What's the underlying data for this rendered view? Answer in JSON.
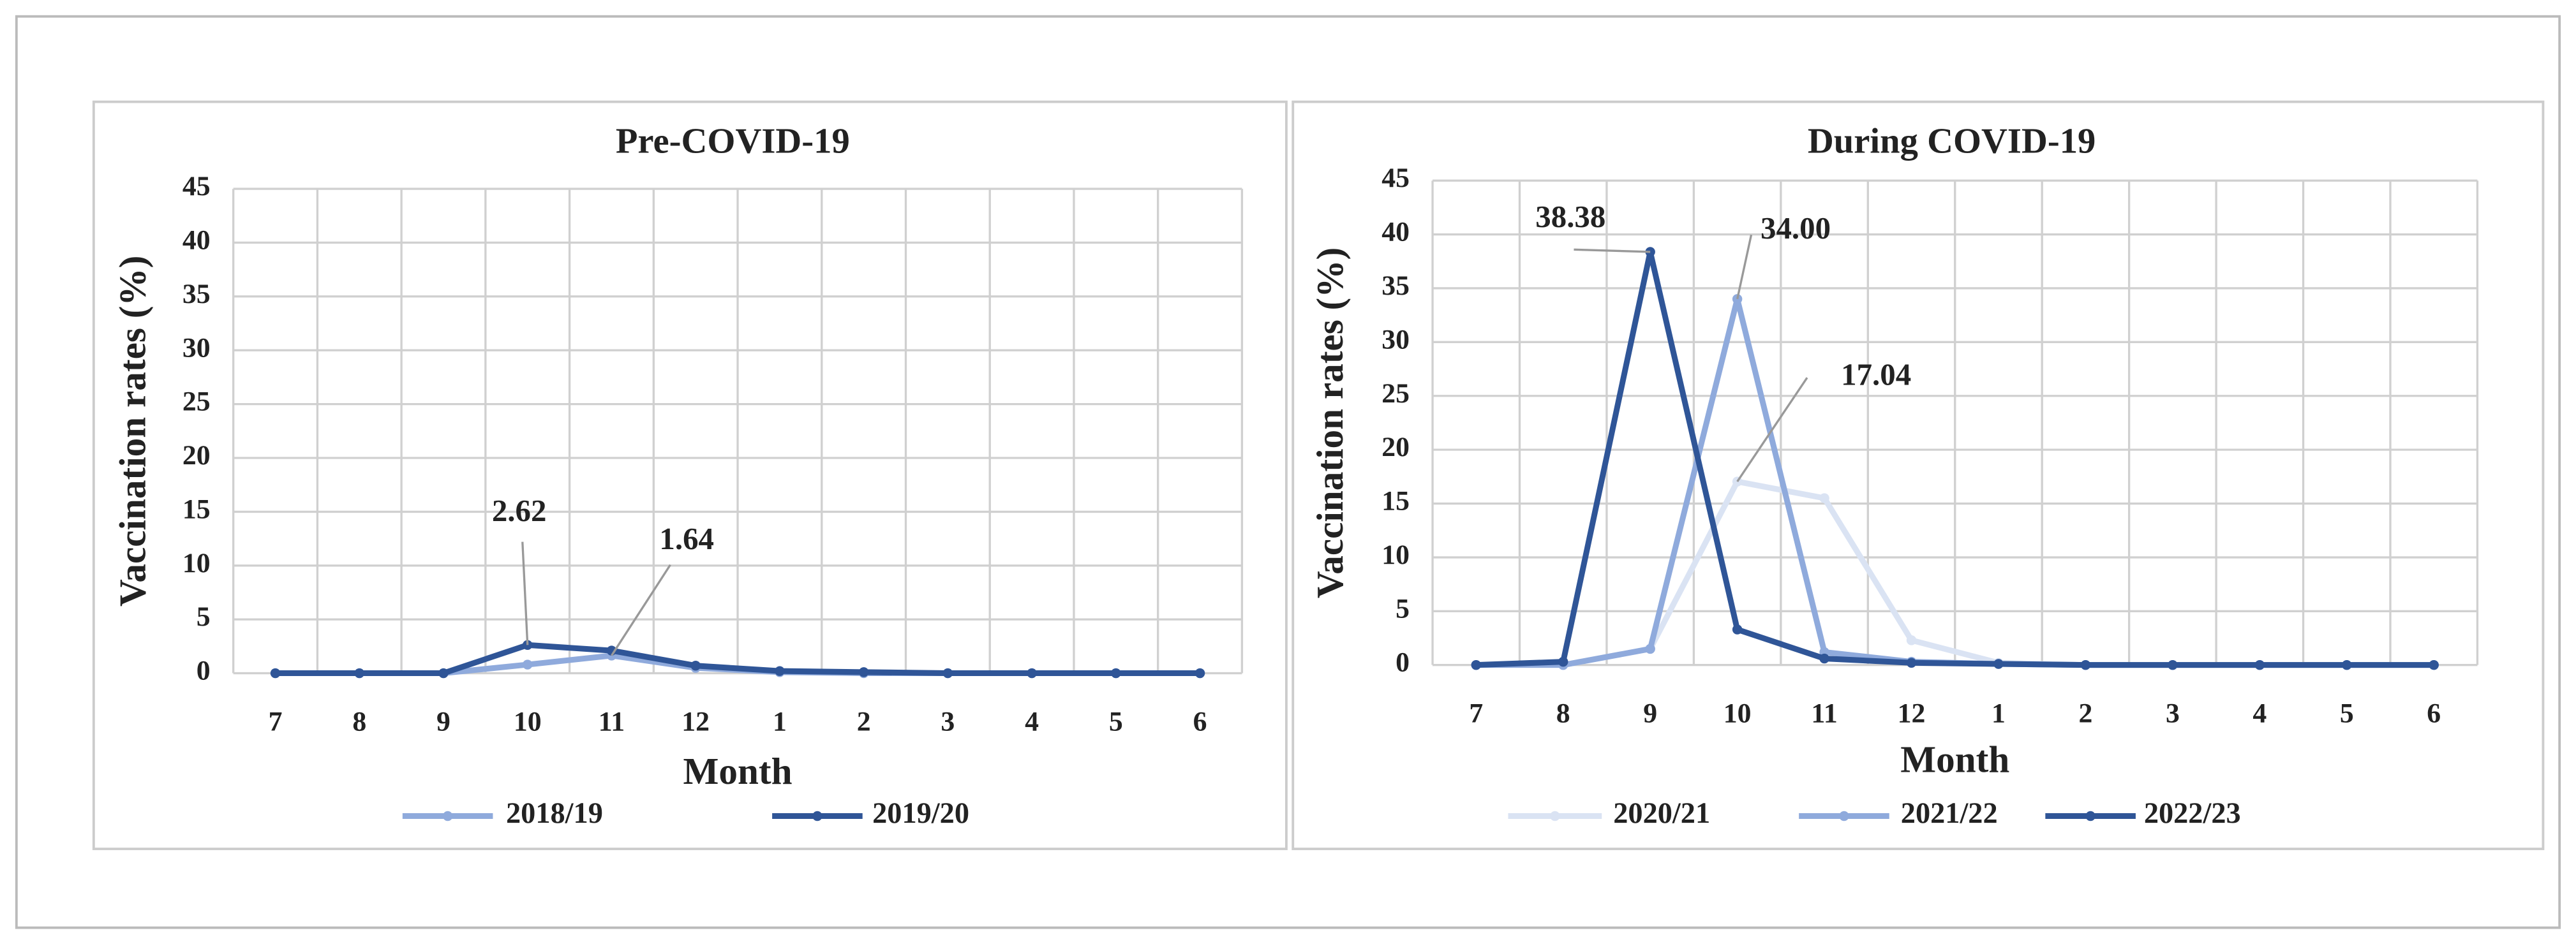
{
  "chart_data": [
    {
      "type": "line",
      "title": "Pre-COVID-19",
      "xlabel": "Month",
      "ylabel": "Vaccination rates (%)",
      "categories": [
        "7",
        "8",
        "9",
        "10",
        "11",
        "12",
        "1",
        "2",
        "3",
        "4",
        "5",
        "6"
      ],
      "ylim": [
        0,
        45
      ],
      "yticks": [
        0,
        5,
        10,
        15,
        20,
        25,
        30,
        35,
        40,
        45
      ],
      "grid": true,
      "legend": "bottom",
      "series": [
        {
          "name": "2018/19",
          "color": "#8faadc",
          "values": [
            0,
            0,
            0,
            0.8,
            1.64,
            0.5,
            0.1,
            0,
            0,
            0,
            0,
            0
          ],
          "value_labels": [
            null,
            null,
            null,
            null,
            "1.64",
            null,
            null,
            null,
            null,
            null,
            null,
            null
          ]
        },
        {
          "name": "2019/20",
          "color": "#2f5597",
          "values": [
            0,
            0,
            0,
            2.62,
            2.1,
            0.7,
            0.2,
            0.1,
            0,
            0,
            0,
            0
          ],
          "value_labels": [
            null,
            null,
            null,
            "2.62",
            null,
            null,
            null,
            null,
            null,
            null,
            null,
            null
          ]
        }
      ]
    },
    {
      "type": "line",
      "title": "During COVID-19",
      "xlabel": "Month",
      "ylabel": "Vaccination rates (%)",
      "categories": [
        "7",
        "8",
        "9",
        "10",
        "11",
        "12",
        "1",
        "2",
        "3",
        "4",
        "5",
        "6"
      ],
      "ylim": [
        0,
        45
      ],
      "yticks": [
        0,
        5,
        10,
        15,
        20,
        25,
        30,
        35,
        40,
        45
      ],
      "grid": true,
      "legend": "bottom",
      "series": [
        {
          "name": "2020/21",
          "color": "#dae3f3",
          "values": [
            0,
            0,
            1.5,
            17.04,
            15.5,
            2.3,
            0.2,
            0,
            0,
            0,
            0,
            0
          ],
          "value_labels": [
            null,
            null,
            null,
            "17.04",
            null,
            null,
            null,
            null,
            null,
            null,
            null,
            null
          ]
        },
        {
          "name": "2021/22",
          "color": "#8faadc",
          "values": [
            0,
            0,
            1.5,
            34,
            1.2,
            0.3,
            0.1,
            0,
            0,
            0,
            0,
            0
          ],
          "value_labels": [
            null,
            null,
            null,
            "34.00",
            null,
            null,
            null,
            null,
            null,
            null,
            null,
            null
          ]
        },
        {
          "name": "2022/23",
          "color": "#2f5597",
          "values": [
            0,
            0.3,
            38.38,
            3.3,
            0.6,
            0.2,
            0.1,
            0,
            0,
            0,
            0,
            0
          ],
          "value_labels": [
            null,
            null,
            "38.38",
            null,
            null,
            null,
            null,
            null,
            null,
            null,
            null,
            null
          ]
        }
      ]
    }
  ]
}
